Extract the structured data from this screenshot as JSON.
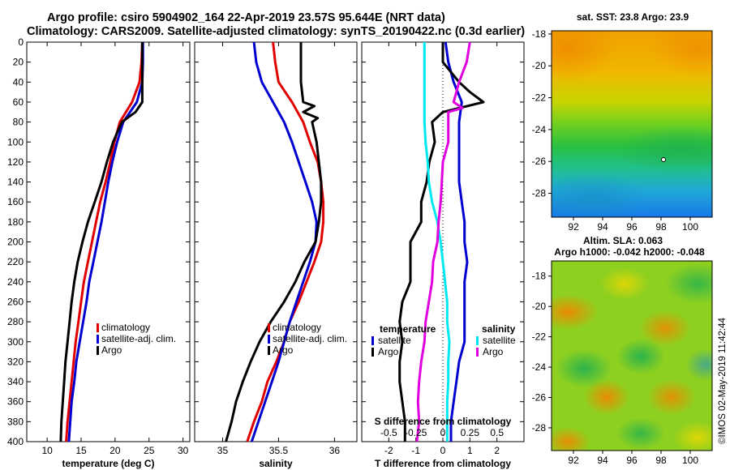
{
  "header": {
    "title_line1": "Argo profile: csiro 5904902_164 22-Apr-2019 23.57S 95.644E (NRT data)",
    "title_line2": "Climatology: CARS2009. Satellite-adjusted climatology: synTS_20190422.nc (0.3d earlier)"
  },
  "watermark": "©IMOS 02-May-2019 11:42:44",
  "colors": {
    "climatology": "#e00000",
    "satellite": "#0000d0",
    "argo": "#000000",
    "sat_salinity": "#00e8f0",
    "clim_salinity": "#e000e0"
  },
  "depth_ticks": [
    "0",
    "20",
    "40",
    "60",
    "80",
    "100",
    "120",
    "140",
    "160",
    "180",
    "200",
    "220",
    "240",
    "260",
    "280",
    "300",
    "320",
    "340",
    "360",
    "380",
    "400"
  ],
  "chart_data": [
    {
      "type": "line",
      "name": "temperature",
      "xlabel": "temperature (deg C)",
      "xlim": [
        7,
        31
      ],
      "xticks": [
        10,
        15,
        20,
        25,
        30
      ],
      "xtick_labels": [
        "10",
        "15",
        "20",
        "25",
        "30"
      ],
      "ylim": [
        0,
        400
      ],
      "legend": [
        "climatology",
        "satellite-adj. clim.",
        "Argo"
      ],
      "series": [
        {
          "name": "climatology",
          "color": "#e00000",
          "depth": [
            0,
            20,
            40,
            60,
            80,
            100,
            120,
            140,
            160,
            180,
            200,
            220,
            240,
            260,
            280,
            300,
            320,
            340,
            360,
            380,
            400
          ],
          "values": [
            24,
            23.9,
            23.6,
            22.5,
            20.7,
            19.9,
            19.3,
            18.6,
            17.8,
            17.2,
            16.6,
            16,
            15.4,
            15,
            14.6,
            14.2,
            13.9,
            13.6,
            13.3,
            13,
            12.8
          ]
        },
        {
          "name": "satellite-adj. clim.",
          "color": "#0000d0",
          "depth": [
            0,
            20,
            40,
            60,
            80,
            100,
            120,
            140,
            160,
            180,
            200,
            220,
            240,
            260,
            280,
            300,
            320,
            340,
            360,
            380,
            400
          ],
          "values": [
            24.1,
            24.1,
            24,
            23.2,
            21.2,
            20.3,
            19.6,
            19,
            18.5,
            18,
            17.4,
            16.8,
            16.2,
            15.8,
            15.3,
            14.8,
            14.3,
            14,
            13.6,
            13.4,
            13.2
          ]
        },
        {
          "name": "Argo",
          "color": "#000000",
          "depth": [
            0,
            20,
            40,
            50,
            60,
            70,
            80,
            100,
            120,
            140,
            160,
            180,
            200,
            220,
            240,
            260,
            280,
            300,
            320,
            340,
            360,
            380,
            400
          ],
          "values": [
            24,
            24,
            24,
            24,
            24,
            23,
            21,
            19.7,
            18.8,
            18,
            17,
            16,
            15.2,
            14.5,
            14,
            13.6,
            13.3,
            13,
            12.7,
            12.5,
            12.3,
            12.1,
            12
          ]
        }
      ]
    },
    {
      "type": "line",
      "name": "salinity",
      "xlabel": "salinity",
      "xlim": [
        34.75,
        36.2
      ],
      "xticks": [
        35,
        35.5,
        36
      ],
      "xtick_labels": [
        "35",
        "35.5",
        "36"
      ],
      "ylim": [
        0,
        400
      ],
      "legend": [
        "climatology",
        "satellite-adj. clim.",
        "Argo"
      ],
      "series": [
        {
          "name": "climatology",
          "color": "#e00000",
          "depth": [
            0,
            20,
            40,
            60,
            80,
            100,
            120,
            140,
            160,
            180,
            200,
            220,
            240,
            260,
            280,
            300,
            320,
            340,
            360,
            380,
            400
          ],
          "values": [
            35.45,
            35.47,
            35.5,
            35.62,
            35.72,
            35.78,
            35.85,
            35.88,
            35.9,
            35.9,
            35.88,
            35.82,
            35.75,
            35.68,
            35.6,
            35.55,
            35.48,
            35.4,
            35.35,
            35.28,
            35.22
          ]
        },
        {
          "name": "satellite-adj. clim.",
          "color": "#0000d0",
          "depth": [
            0,
            20,
            40,
            60,
            80,
            100,
            120,
            140,
            160,
            180,
            200,
            220,
            240,
            260,
            280,
            300,
            320,
            340,
            360,
            380,
            400
          ],
          "values": [
            35.28,
            35.3,
            35.35,
            35.45,
            35.55,
            35.62,
            35.68,
            35.74,
            35.8,
            35.84,
            35.83,
            35.78,
            35.72,
            35.66,
            35.6,
            35.55,
            35.5,
            35.44,
            35.38,
            35.32,
            35.26
          ]
        },
        {
          "name": "Argo",
          "color": "#000000",
          "depth": [
            0,
            20,
            40,
            60,
            64,
            70,
            76,
            80,
            100,
            120,
            140,
            160,
            180,
            200,
            220,
            240,
            260,
            280,
            300,
            320,
            340,
            360,
            380,
            400
          ],
          "values": [
            35.7,
            35.7,
            35.7,
            35.72,
            35.82,
            35.72,
            35.85,
            35.8,
            35.84,
            35.86,
            35.88,
            35.88,
            35.86,
            35.83,
            35.73,
            35.65,
            35.55,
            35.43,
            35.33,
            35.25,
            35.18,
            35.12,
            35.08,
            35.03
          ]
        }
      ]
    },
    {
      "type": "line",
      "name": "difference",
      "xlabel": "T difference from climatology",
      "xlim": [
        -3,
        3
      ],
      "xticks": [
        -2,
        -1,
        0,
        1,
        2
      ],
      "xtick_labels": [
        "-2",
        "-1",
        "0",
        "1",
        "2"
      ],
      "s_axis_label": "S difference from climatology",
      "s_axis_ticks": [
        "-0.5",
        "-0.25",
        "0",
        "0.25",
        "0.5"
      ],
      "ylim": [
        0,
        400
      ],
      "legend_temperature_title": "temperature",
      "legend_salinity_title": "salinity",
      "legend_temperature": [
        "satellite",
        "Argo"
      ],
      "legend_salinity": [
        "satellite",
        "Argo"
      ],
      "series": [
        {
          "name": "T satellite",
          "color": "#0000d0",
          "depth": [
            0,
            20,
            40,
            60,
            80,
            100,
            120,
            140,
            160,
            180,
            200,
            220,
            240,
            260,
            280,
            300,
            320,
            340,
            360,
            380,
            400
          ],
          "values": [
            0.1,
            0.2,
            0.4,
            0.7,
            0.6,
            0.6,
            0.6,
            0.6,
            0.7,
            0.8,
            0.8,
            0.9,
            0.8,
            0.8,
            0.8,
            0.8,
            0.6,
            0.5,
            0.4,
            0.3,
            0.3
          ]
        },
        {
          "name": "T Argo",
          "color": "#000000",
          "depth": [
            0,
            20,
            40,
            50,
            60,
            70,
            80,
            100,
            120,
            140,
            160,
            180,
            200,
            220,
            240,
            260,
            280,
            300,
            320,
            340,
            360,
            380,
            400
          ],
          "values": [
            0,
            0,
            0.6,
            1,
            1.5,
            0,
            -0.4,
            -0.3,
            -0.5,
            -0.6,
            -0.8,
            -0.8,
            -1.2,
            -1.2,
            -1.2,
            -1.5,
            -1.6,
            -1.5,
            -1.6,
            -1.6,
            -1.5,
            -1.4,
            -1.4
          ]
        },
        {
          "name": "S satellite",
          "color": "#00e8f0",
          "depth": [
            0,
            20,
            40,
            60,
            80,
            100,
            120,
            140,
            160,
            180,
            200,
            220,
            240,
            260,
            280,
            300,
            320,
            340,
            360,
            380,
            400
          ],
          "values": [
            -0.17,
            -0.17,
            -0.17,
            -0.17,
            -0.17,
            -0.16,
            -0.14,
            -0.13,
            -0.1,
            -0.05,
            -0.02,
            0.0,
            0.02,
            0.04,
            0.04,
            0.06,
            0.05,
            0.05,
            0.04,
            0.04,
            0.04
          ]
        },
        {
          "name": "S Argo",
          "color": "#e000e0",
          "depth": [
            0,
            20,
            40,
            60,
            66,
            70,
            80,
            100,
            120,
            140,
            160,
            180,
            200,
            220,
            240,
            260,
            280,
            300,
            320,
            340,
            360,
            380,
            400
          ],
          "values": [
            0.25,
            0.22,
            0.15,
            0.1,
            0.18,
            0.05,
            0.05,
            0.05,
            0.0,
            -0.01,
            -0.02,
            -0.04,
            -0.05,
            -0.09,
            -0.1,
            -0.13,
            -0.16,
            -0.17,
            -0.2,
            -0.22,
            -0.23,
            -0.22,
            -0.24
          ]
        }
      ]
    },
    {
      "type": "heatmap",
      "name": "sst_map",
      "title": "sat. SST: 23.8 Argo: 23.9",
      "xlim": [
        90.5,
        101.5
      ],
      "ylim": [
        -29.5,
        -17.8
      ],
      "xticks": [
        92,
        94,
        96,
        98,
        100
      ],
      "yticks": [
        -18,
        -20,
        -22,
        -24,
        -26,
        -28
      ],
      "xtick_labels": [
        "92",
        "94",
        "96",
        "98",
        "100"
      ],
      "ytick_labels": [
        "-18",
        "-20",
        "-22",
        "-24",
        "-26",
        "-28"
      ]
    },
    {
      "type": "heatmap",
      "name": "sla_map",
      "title": "Altim. SLA: 0.063",
      "subtitle": "Argo h1000: -0.042 h2000: -0.048",
      "xlim": [
        90.5,
        101.5
      ],
      "ylim": [
        -29.5,
        -17
      ],
      "xticks": [
        92,
        94,
        96,
        98,
        100
      ],
      "yticks": [
        -18,
        -20,
        -22,
        -24,
        -26,
        -28
      ],
      "xtick_labels": [
        "92",
        "94",
        "96",
        "98",
        "100"
      ],
      "ytick_labels": [
        "-18",
        "-20",
        "-22",
        "-24",
        "-26",
        "-28"
      ]
    }
  ]
}
